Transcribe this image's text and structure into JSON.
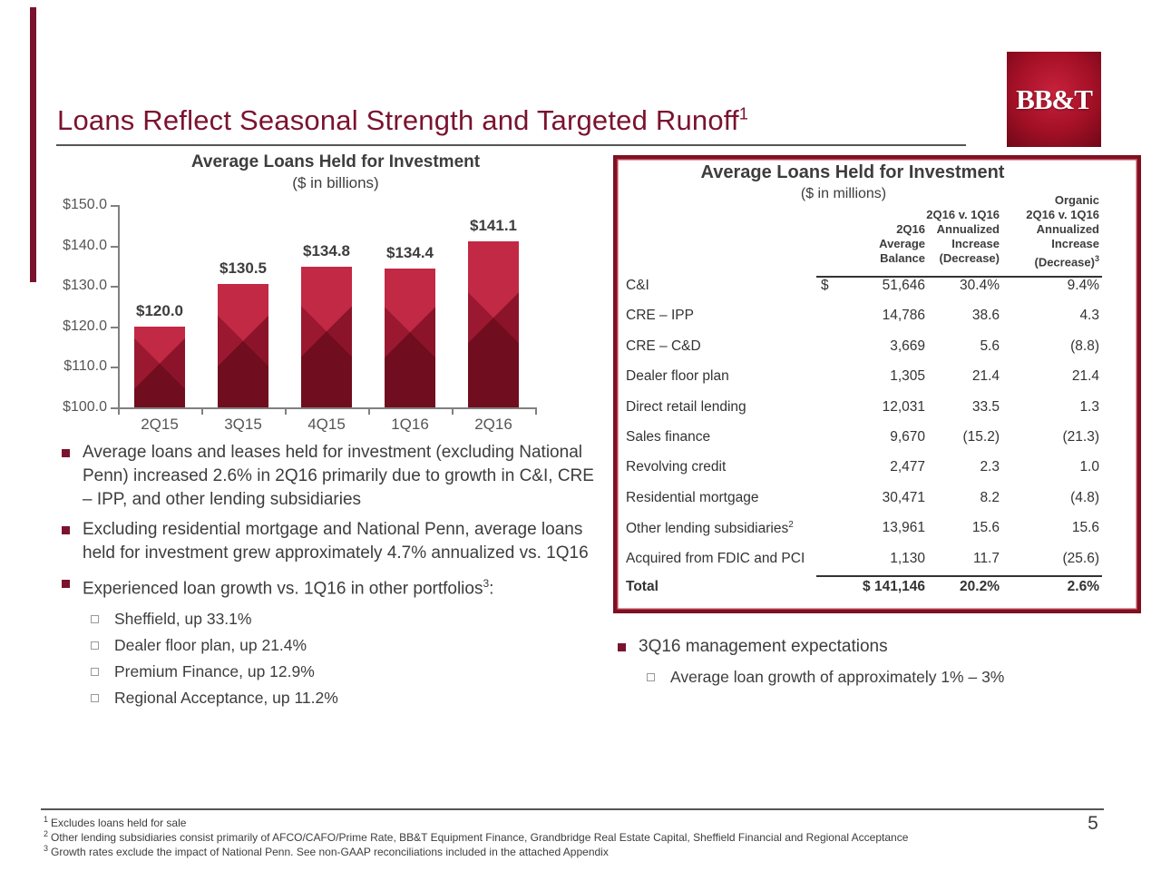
{
  "slide": {
    "title": "Loans Reflect Seasonal Strength and Targeted Runoff",
    "title_sup": "1",
    "logo_text": "BB&T",
    "page_number": "5"
  },
  "colors": {
    "accent_maroon": "#7a132e",
    "bar_red": "#9a1830",
    "table_border": "#7e1022"
  },
  "chart_data": {
    "type": "bar",
    "title": "Average Loans Held for Investment",
    "subtitle": "($ in billions)",
    "categories": [
      "2Q15",
      "3Q15",
      "4Q15",
      "1Q16",
      "2Q16"
    ],
    "values": [
      120.0,
      130.5,
      134.8,
      134.4,
      141.1
    ],
    "bar_labels": [
      "$120.0",
      "$130.5",
      "$134.8",
      "$134.4",
      "$141.1"
    ],
    "ylim": [
      100,
      150
    ],
    "ytick_values": [
      150,
      140,
      130,
      120,
      110,
      100
    ],
    "ytick_labels": [
      "$150.0",
      "$140.0",
      "$130.0",
      "$120.0",
      "$110.0",
      "$100.0"
    ],
    "grid": false,
    "legend": "none"
  },
  "table": {
    "title": "Average Loans Held for Investment",
    "subtitle": "($ in millions)",
    "col1_header_lines": [
      "2Q16",
      "Average",
      "Balance"
    ],
    "col2_header_lines": [
      "2Q16 v. 1Q16",
      "Annualized",
      "Increase",
      "(Decrease)"
    ],
    "col3_header_lines": [
      "Organic",
      "2Q16 v. 1Q16",
      "Annualized",
      "Increase",
      "(Decrease)"
    ],
    "col3_header_sup": "3",
    "rows": [
      {
        "label": "C&I",
        "sup": "",
        "dollar": "$",
        "balance": "51,646",
        "annualized": "30.4%",
        "organic": "9.4%"
      },
      {
        "label": "CRE – IPP",
        "sup": "",
        "dollar": "",
        "balance": "14,786",
        "annualized": "38.6",
        "organic": "4.3"
      },
      {
        "label": "CRE – C&D",
        "sup": "",
        "dollar": "",
        "balance": "3,669",
        "annualized": "5.6",
        "organic": "(8.8)"
      },
      {
        "label": "Dealer floor plan",
        "sup": "",
        "dollar": "",
        "balance": "1,305",
        "annualized": "21.4",
        "organic": "21.4"
      },
      {
        "label": "Direct retail lending",
        "sup": "",
        "dollar": "",
        "balance": "12,031",
        "annualized": "33.5",
        "organic": "1.3"
      },
      {
        "label": "Sales finance",
        "sup": "",
        "dollar": "",
        "balance": "9,670",
        "annualized": "(15.2)",
        "organic": "(21.3)"
      },
      {
        "label": "Revolving credit",
        "sup": "",
        "dollar": "",
        "balance": "2,477",
        "annualized": "2.3",
        "organic": "1.0"
      },
      {
        "label": "Residential mortgage",
        "sup": "",
        "dollar": "",
        "balance": "30,471",
        "annualized": "8.2",
        "organic": "(4.8)"
      },
      {
        "label": "Other lending subsidiaries",
        "sup": "2",
        "dollar": "",
        "balance": "13,961",
        "annualized": "15.6",
        "organic": "15.6"
      },
      {
        "label": "Acquired from FDIC and PCI",
        "sup": "",
        "dollar": "",
        "balance": "1,130",
        "annualized": "11.7",
        "organic": "(25.6)"
      }
    ],
    "total": {
      "label": "Total",
      "balance": "$ 141,146",
      "annualized": "20.2%",
      "organic": "2.6%"
    }
  },
  "left_bullets": [
    {
      "pre": "Average loans and leases held for investment (excluding National Penn) increased 2.6% in 2Q16 primarily due to growth in C&I, CRE – IPP, and other lending subsidiaries",
      "sup": "",
      "post": "",
      "sub": []
    },
    {
      "pre": "Excluding residential mortgage and National Penn, average loans held for investment grew approximately 4.7% annualized vs. 1Q16",
      "sup": "",
      "post": "",
      "sub": []
    },
    {
      "pre": "Experienced loan growth vs. 1Q16 in other portfolios",
      "sup": "3",
      "post": ":",
      "sub": [
        "Sheffield, up 33.1%",
        "Dealer floor plan, up 21.4%",
        "Premium Finance, up 12.9%",
        "Regional Acceptance, up 11.2%"
      ]
    }
  ],
  "right_bullets": [
    {
      "pre": "3Q16 management expectations",
      "sup": "",
      "post": "",
      "sub": [
        "Average loan growth of approximately 1% – 3%"
      ]
    }
  ],
  "footnotes": [
    {
      "sup": "1",
      "text": "Excludes loans held for sale"
    },
    {
      "sup": "2",
      "text": "Other lending subsidiaries consist primarily of AFCO/CAFO/Prime Rate, BB&T Equipment Finance, Grandbridge Real Estate Capital, Sheffield Financial and Regional Acceptance"
    },
    {
      "sup": "3",
      "text": "Growth rates exclude the impact of National Penn.  See non-GAAP reconciliations included in the attached Appendix"
    }
  ]
}
